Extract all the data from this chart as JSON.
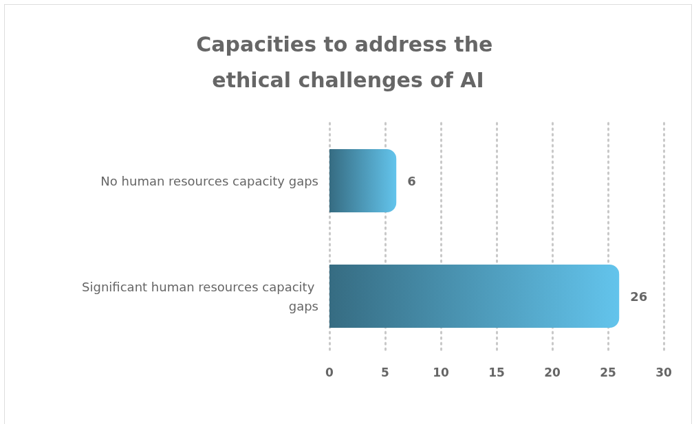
{
  "chart_data": {
    "type": "bar",
    "orientation": "horizontal",
    "title": "Capacities to address the ethical challenges of AI",
    "categories": [
      "No human resources capacity gaps",
      "Significant human resources capacity gaps"
    ],
    "values": [
      6,
      26
    ],
    "color": "#63c4ec",
    "xlim": [
      0,
      30
    ],
    "xticks": [
      0,
      5,
      10,
      15,
      20,
      25,
      30
    ],
    "grid": "x",
    "data_labels": true
  }
}
